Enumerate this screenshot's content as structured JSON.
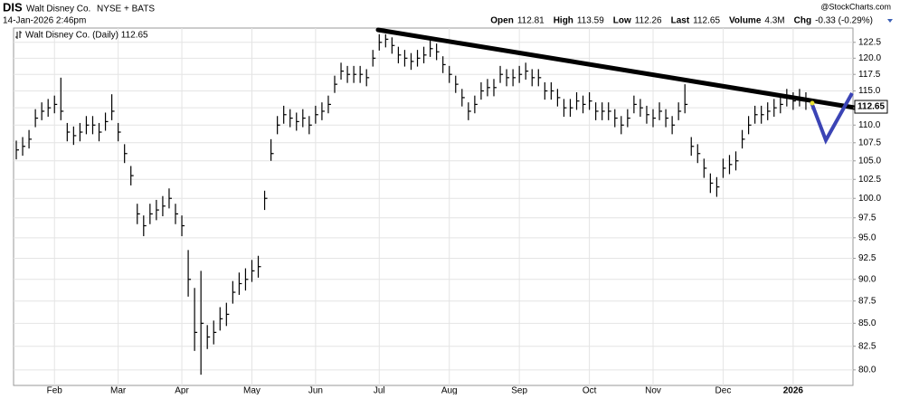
{
  "header": {
    "symbol": "DIS",
    "name": "Walt Disney Co.",
    "exchange": "NYSE + BATS",
    "timestamp": "14-Jan-2026 2:46pm",
    "source": "@StockCharts.com",
    "quote": [
      {
        "label": "Open",
        "value": "112.81"
      },
      {
        "label": "High",
        "value": "113.59"
      },
      {
        "label": "Low",
        "value": "112.26"
      },
      {
        "label": "Last",
        "value": "112.65"
      },
      {
        "label": "Volume",
        "value": "4.3M"
      },
      {
        "label": "Chg",
        "value": "-0.33 (-0.29%)"
      }
    ]
  },
  "chart_data": {
    "type": "ohlc",
    "legend": "Walt Disney Co. (Daily) 112.65",
    "color": "#000000",
    "log": true,
    "grid": true,
    "ylim": [
      78.4,
      124.8
    ],
    "yticks": [
      {
        "value": 80,
        "label": "80.0"
      },
      {
        "value": 82.5,
        "label": "82.5"
      },
      {
        "value": 85,
        "label": "85.0"
      },
      {
        "value": 87.5,
        "label": "87.5"
      },
      {
        "value": 90,
        "label": "90.0"
      },
      {
        "value": 92.5,
        "label": "92.5"
      },
      {
        "value": 95,
        "label": "95.0"
      },
      {
        "value": 97.5,
        "label": "97.5"
      },
      {
        "value": 100,
        "label": "100.0"
      },
      {
        "value": 102.5,
        "label": "102.5"
      },
      {
        "value": 105,
        "label": "105.0"
      },
      {
        "value": 107.5,
        "label": "107.5"
      },
      {
        "value": 110,
        "label": "110.0"
      },
      {
        "value": 112.5,
        "label": "112.5"
      },
      {
        "value": 115,
        "label": "115.0"
      },
      {
        "value": 117.5,
        "label": "117.5"
      },
      {
        "value": 120,
        "label": "120.0"
      },
      {
        "value": 122.5,
        "label": "122.5"
      }
    ],
    "categories": [
      null,
      null,
      null,
      null,
      null,
      null,
      "Feb",
      null,
      null,
      null,
      null,
      null,
      null,
      null,
      null,
      null,
      "Mar",
      null,
      null,
      null,
      null,
      null,
      null,
      null,
      null,
      null,
      "Apr",
      null,
      null,
      null,
      null,
      null,
      null,
      null,
      null,
      null,
      null,
      "May",
      null,
      null,
      null,
      null,
      null,
      null,
      null,
      null,
      null,
      "Jun",
      null,
      null,
      null,
      null,
      null,
      null,
      null,
      null,
      null,
      "Jul",
      null,
      null,
      null,
      null,
      null,
      null,
      null,
      null,
      null,
      null,
      "Aug",
      null,
      null,
      null,
      null,
      null,
      null,
      null,
      null,
      null,
      null,
      "Sep",
      null,
      null,
      null,
      null,
      null,
      null,
      null,
      null,
      null,
      null,
      "Oct",
      null,
      null,
      null,
      null,
      null,
      null,
      null,
      null,
      null,
      "Nov",
      null,
      null,
      null,
      null,
      null,
      null,
      null,
      null,
      null,
      null,
      "Dec",
      null,
      null,
      null,
      null,
      null,
      null,
      null,
      null,
      null,
      null,
      "2026",
      null,
      null,
      null
    ],
    "high": [
      107.8,
      108.3,
      109.3,
      112.3,
      113.3,
      113.8,
      114.3,
      117,
      110.3,
      109.8,
      110.3,
      111.3,
      111.3,
      110.3,
      111.8,
      114.5,
      110.3,
      107.3,
      104.3,
      99.3,
      97.8,
      99.3,
      99.8,
      100.3,
      101.3,
      99.3,
      97.8,
      93.5,
      89,
      91,
      84.8,
      85.3,
      86.8,
      87.3,
      89.8,
      90.8,
      91.3,
      92.3,
      92.8,
      101,
      108,
      111.3,
      112.8,
      112.3,
      111.8,
      112.3,
      111.3,
      112.8,
      113.3,
      114.3,
      117.3,
      119.3,
      118.8,
      118.8,
      118.8,
      118.3,
      121.3,
      123.8,
      123.8,
      123.3,
      121.8,
      121.3,
      120.8,
      121.3,
      121.8,
      122.8,
      122.3,
      120.3,
      118.8,
      117.3,
      115.3,
      113.3,
      114.3,
      116.3,
      116.8,
      116.8,
      118.8,
      118.3,
      118.3,
      118.8,
      119.3,
      118.3,
      118.3,
      116.3,
      116.3,
      115.3,
      113.8,
      113.8,
      114.8,
      114.3,
      114.8,
      113.3,
      113.3,
      113.3,
      112.3,
      111.3,
      112.3,
      114.3,
      113.8,
      112.8,
      112.3,
      113.3,
      112.3,
      111.3,
      113.3,
      116,
      108.3,
      107.3,
      105.3,
      103.3,
      102.8,
      105.3,
      105.8,
      106.3,
      109.3,
      111.3,
      112.8,
      112.8,
      113.3,
      113.8,
      114.3,
      115.3,
      114.8,
      115.3,
      114.8,
      113.59
    ],
    "low": [
      105.2,
      105.7,
      106.7,
      109.7,
      110.7,
      111.2,
      111.7,
      110.7,
      107.7,
      107.2,
      107.7,
      108.7,
      108.7,
      107.7,
      109.2,
      110.7,
      107.7,
      104.7,
      101.7,
      96.7,
      95.2,
      96.7,
      97.2,
      97.7,
      98.7,
      96.7,
      95.2,
      88,
      82,
      79.5,
      82.2,
      82.7,
      84.2,
      84.7,
      87.2,
      88.2,
      88.7,
      89.7,
      90.2,
      98.5,
      105,
      108.7,
      110.2,
      109.7,
      109.2,
      109.7,
      108.7,
      110.2,
      110.7,
      111.7,
      114.7,
      116.7,
      116.2,
      116.2,
      116.2,
      115.7,
      118.7,
      121.2,
      121.7,
      120.7,
      119.2,
      118.7,
      118.2,
      118.7,
      119.2,
      120.2,
      119.7,
      117.7,
      116.2,
      114.7,
      112.7,
      110.7,
      111.7,
      113.7,
      114.2,
      114.2,
      116.2,
      115.7,
      115.7,
      116.2,
      116.7,
      115.7,
      115.7,
      113.7,
      113.7,
      112.7,
      111.2,
      111.2,
      112.2,
      111.7,
      112.2,
      110.7,
      110.7,
      110.7,
      109.7,
      108.7,
      109.7,
      111.7,
      111.2,
      110.2,
      109.7,
      110.7,
      109.7,
      108.7,
      110.7,
      111.7,
      105.7,
      104.7,
      102.7,
      100.7,
      100.2,
      102.7,
      103.2,
      103.7,
      106.7,
      108.7,
      110.2,
      110.2,
      110.7,
      111.2,
      111.7,
      112.7,
      112.2,
      112.7,
      112.2,
      112.26
    ],
    "close": [
      106.5,
      107,
      108,
      111,
      112,
      112.5,
      113,
      112,
      109,
      108.5,
      109,
      110,
      110,
      109,
      110.5,
      112,
      109,
      106,
      103,
      98,
      96.5,
      98,
      98.5,
      99,
      100,
      98,
      96.5,
      90,
      84,
      85,
      83.5,
      84,
      85.5,
      86,
      88.5,
      89.5,
      90,
      91,
      91.5,
      100,
      106,
      110,
      111.5,
      111,
      110.5,
      111,
      110,
      111.5,
      112,
      113,
      116,
      118,
      117.5,
      117.5,
      117.5,
      117,
      120,
      122.5,
      123,
      122,
      120.5,
      120,
      119.5,
      120,
      120.5,
      121.5,
      121,
      119,
      117.5,
      116,
      114,
      112,
      113,
      115,
      115.5,
      115.5,
      117.5,
      117,
      117,
      117.5,
      118,
      117,
      117,
      115,
      115,
      114,
      112.5,
      112.5,
      113.5,
      113,
      113.5,
      112,
      112,
      112,
      111,
      110,
      111,
      113,
      112.5,
      111.5,
      111,
      112,
      111,
      110,
      112,
      113,
      107,
      106,
      104,
      102,
      101.5,
      104,
      104.5,
      105,
      108,
      110,
      111.5,
      111.5,
      112,
      112.5,
      113,
      114,
      113.5,
      114,
      113.5,
      112.65
    ]
  }
}
